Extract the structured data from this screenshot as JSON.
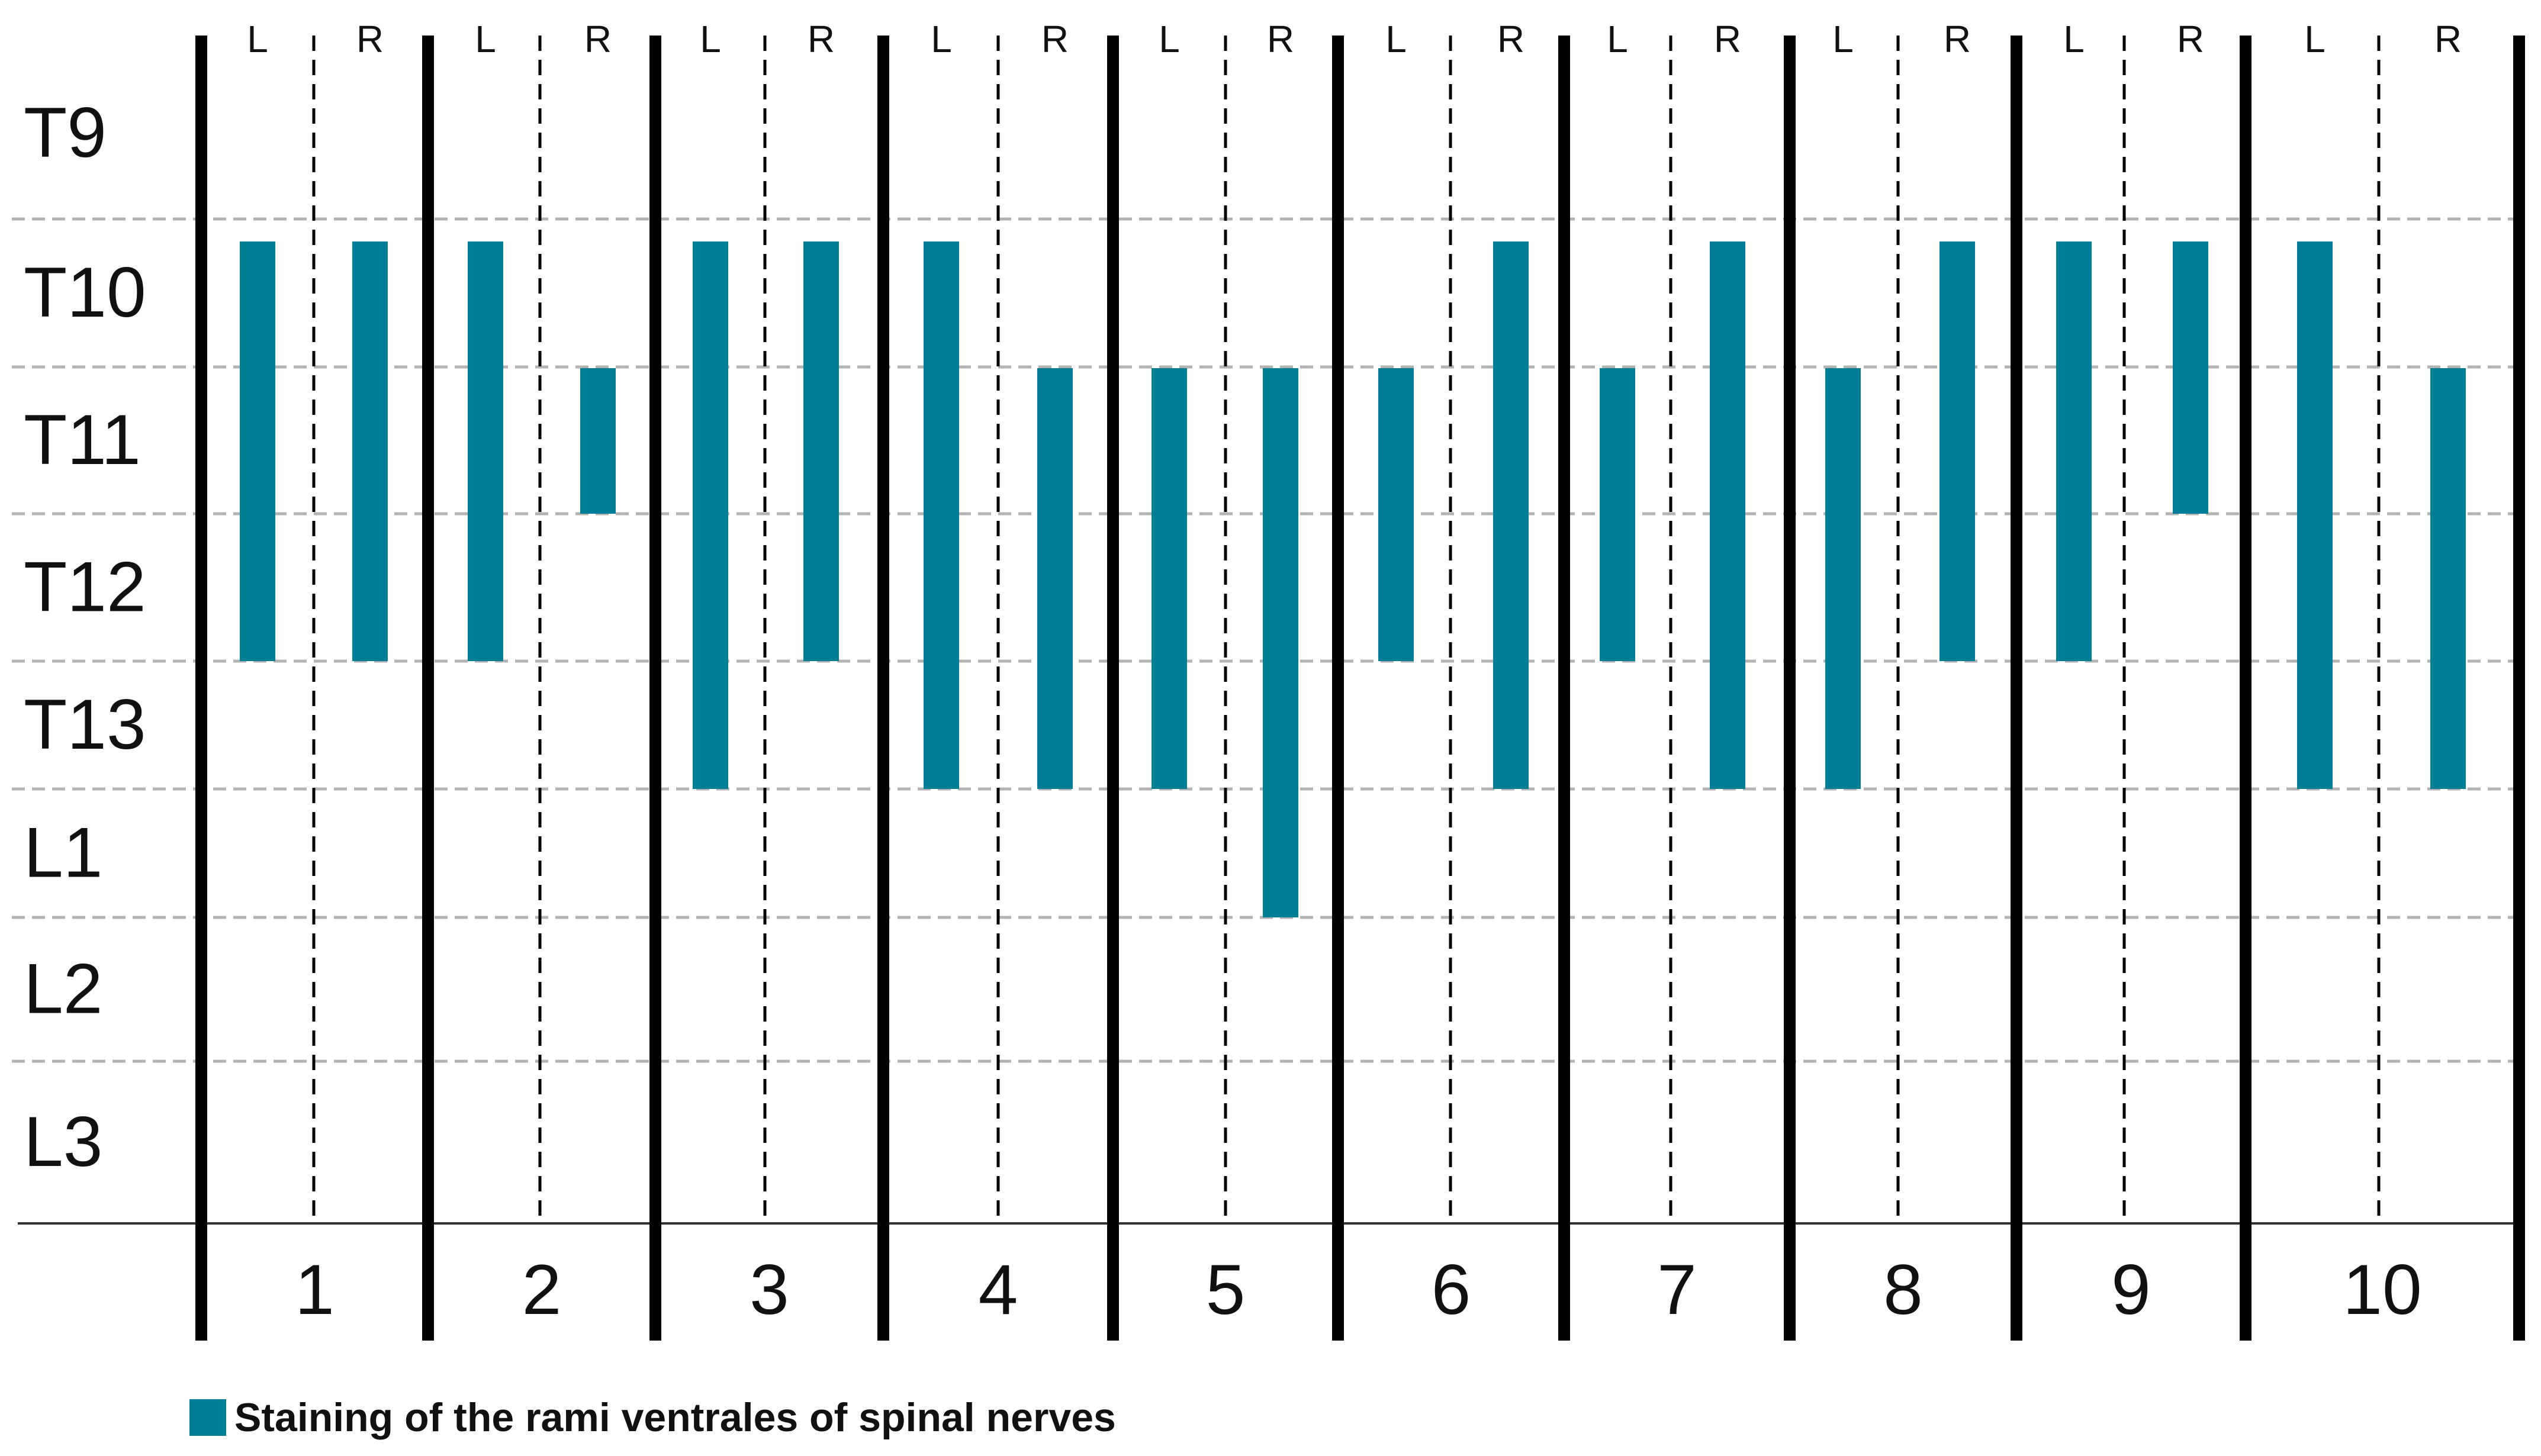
{
  "chart_data": {
    "type": "bar",
    "orientation": "vertical-range",
    "title": "",
    "xlabel": "",
    "ylabel": "",
    "segments": [
      "T9",
      "T10",
      "T11",
      "T12",
      "T13",
      "L1",
      "L2",
      "L3"
    ],
    "groups": [
      "1",
      "2",
      "3",
      "4",
      "5",
      "6",
      "7",
      "8",
      "9",
      "10"
    ],
    "sides": [
      "L",
      "R"
    ],
    "grid": true,
    "legend_position": "bottom-left",
    "legend": {
      "label": "Staining of the rami ventrales of spinal nerves",
      "color": "#007e96"
    },
    "series": [
      {
        "group": "1",
        "side": "L",
        "from": "T10",
        "to": "T12"
      },
      {
        "group": "1",
        "side": "R",
        "from": "T10",
        "to": "T12"
      },
      {
        "group": "2",
        "side": "L",
        "from": "T10",
        "to": "T12"
      },
      {
        "group": "2",
        "side": "R",
        "from": "T11",
        "to": "T11"
      },
      {
        "group": "3",
        "side": "L",
        "from": "T10",
        "to": "T13"
      },
      {
        "group": "3",
        "side": "R",
        "from": "T10",
        "to": "T12"
      },
      {
        "group": "4",
        "side": "L",
        "from": "T10",
        "to": "T13"
      },
      {
        "group": "4",
        "side": "R",
        "from": "T11",
        "to": "T13"
      },
      {
        "group": "5",
        "side": "L",
        "from": "T11",
        "to": "T13"
      },
      {
        "group": "5",
        "side": "R",
        "from": "T11",
        "to": "L1"
      },
      {
        "group": "6",
        "side": "L",
        "from": "T11",
        "to": "T12"
      },
      {
        "group": "6",
        "side": "R",
        "from": "T10",
        "to": "T13"
      },
      {
        "group": "7",
        "side": "L",
        "from": "T11",
        "to": "T12"
      },
      {
        "group": "7",
        "side": "R",
        "from": "T10",
        "to": "T13"
      },
      {
        "group": "8",
        "side": "L",
        "from": "T11",
        "to": "T13"
      },
      {
        "group": "8",
        "side": "R",
        "from": "T10",
        "to": "T12"
      },
      {
        "group": "9",
        "side": "L",
        "from": "T10",
        "to": "T12"
      },
      {
        "group": "9",
        "side": "R",
        "from": "T10",
        "to": "T11"
      },
      {
        "group": "10",
        "side": "L",
        "from": "T10",
        "to": "T13"
      },
      {
        "group": "10",
        "side": "R",
        "from": "T11",
        "to": "T13"
      }
    ]
  },
  "colors": {
    "bar": "#007e96",
    "grid": "#b3b3b3",
    "separator": "#000000",
    "text": "#111111"
  }
}
